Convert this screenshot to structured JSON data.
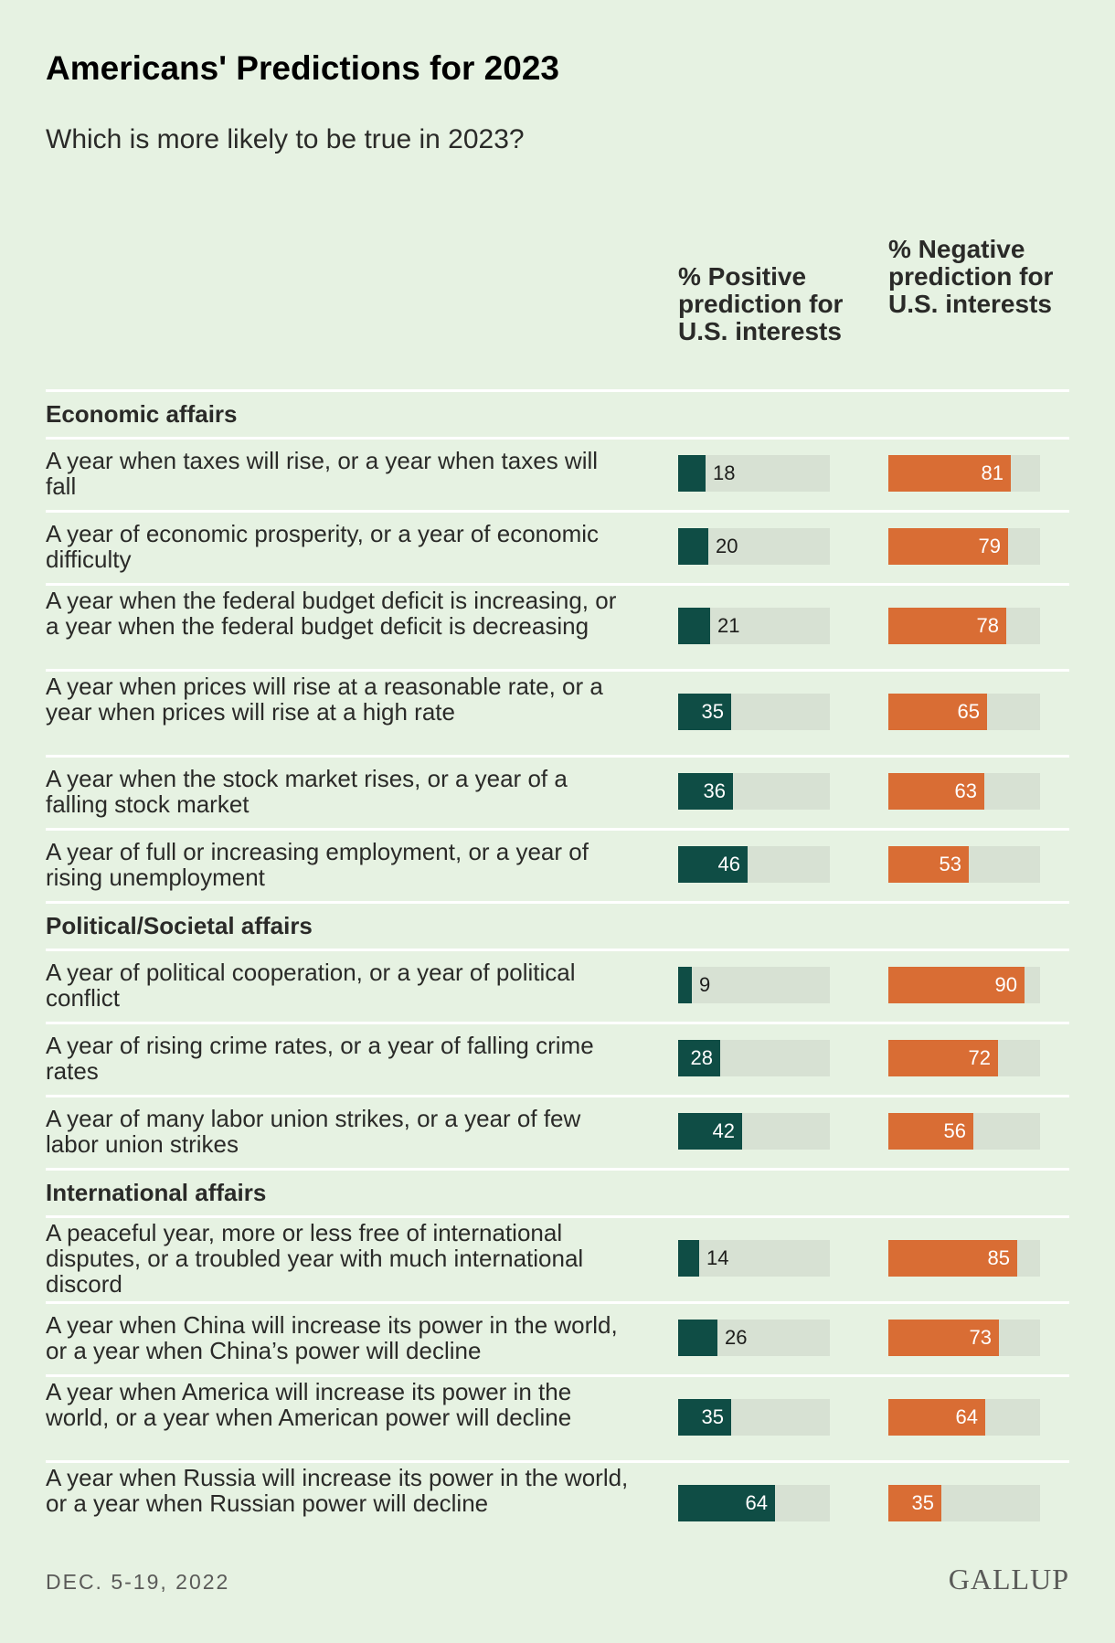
{
  "title": "Americans' Predictions for 2023",
  "subtitle": "Which is more likely to be true in 2023?",
  "column_headers": {
    "positive": "% Positive prediction for U.S. interests",
    "negative": "% Negative prediction for U.S. interests"
  },
  "colors": {
    "positive": "#0f4d45",
    "negative": "#d96d34",
    "track": "#d7e1d3",
    "background": "#e6f2e2"
  },
  "chart_data": {
    "type": "bar",
    "scale_max": 100,
    "series": [
      {
        "name": "% Positive prediction for U.S. interests"
      },
      {
        "name": "% Negative prediction for U.S. interests"
      }
    ],
    "sections": [
      {
        "name": "Economic affairs",
        "rows": [
          {
            "label": "A year when taxes will rise, or a year when taxes will fall",
            "positive": 18,
            "negative": 81
          },
          {
            "label": "A year of economic prosperity, or a year of economic difficulty",
            "positive": 20,
            "negative": 79
          },
          {
            "label": "A year when the federal budget deficit is increasing, or a year when the federal budget deficit is decreasing",
            "positive": 21,
            "negative": 78
          },
          {
            "label": "A year when prices will rise at a reasonable rate, or a year when prices will rise at a high rate",
            "positive": 35,
            "negative": 65
          },
          {
            "label": "A year when the stock market rises, or a year of a falling stock market",
            "positive": 36,
            "negative": 63
          },
          {
            "label": "A year of full or increasing employment, or a year of rising unemployment",
            "positive": 46,
            "negative": 53
          }
        ]
      },
      {
        "name": "Political/Societal affairs",
        "rows": [
          {
            "label": "A year of political cooperation, or a year of political conflict",
            "positive": 9,
            "negative": 90
          },
          {
            "label": "A year of rising crime rates, or a year of falling crime rates",
            "positive": 28,
            "negative": 72
          },
          {
            "label": "A year of many labor union strikes, or a year of few labor union strikes",
            "positive": 42,
            "negative": 56
          }
        ]
      },
      {
        "name": "International affairs",
        "rows": [
          {
            "label": "A peaceful year, more or less free of international disputes, or a troubled year with much international discord",
            "positive": 14,
            "negative": 85
          },
          {
            "label": "A year when China will increase its power in the world, or a year when China’s power will decline",
            "positive": 26,
            "negative": 73
          },
          {
            "label": "A year when America will increase its power in the world, or a year when American power will decline",
            "positive": 35,
            "negative": 64
          },
          {
            "label": "A year when Russia will increase its power in the world, or a year when Russian power will decline",
            "positive": 64,
            "negative": 35
          }
        ]
      }
    ]
  },
  "footer": {
    "date": "DEC. 5-19, 2022",
    "source": "GALLUP"
  }
}
